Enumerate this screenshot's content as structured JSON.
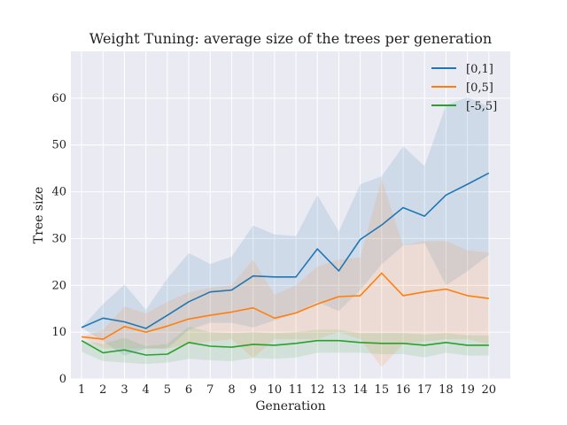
{
  "chart_data": {
    "type": "line",
    "title": "Weight Tuning: average size of the trees per generation",
    "xlabel": "Generation",
    "ylabel": "Tree size",
    "x": [
      1,
      2,
      3,
      4,
      5,
      6,
      7,
      8,
      9,
      10,
      11,
      12,
      13,
      14,
      15,
      16,
      17,
      18,
      19,
      20
    ],
    "xlim": [
      0.5,
      21
    ],
    "ylim": [
      0,
      70
    ],
    "yticks": [
      0,
      10,
      20,
      30,
      40,
      50,
      60
    ],
    "grid": true,
    "legend_position": "top-right",
    "series": [
      {
        "name": "[0,1]",
        "color": "#1f77b4",
        "values": [
          11,
          13,
          12.2,
          10.8,
          13.6,
          16.5,
          18.6,
          19,
          22,
          21.8,
          21.8,
          27.8,
          23.1,
          29.8,
          32.9,
          36.6,
          34.8,
          39.3,
          41.6,
          44
        ],
        "band_upper": [
          11,
          16,
          20.2,
          14.8,
          21.5,
          26.9,
          24.6,
          26.1,
          32.8,
          30.9,
          30.5,
          39.3,
          31.5,
          41.6,
          43.3,
          49.7,
          45.5,
          58.5,
          60.2,
          58.2
        ],
        "band_lower": [
          11,
          8,
          5,
          6.5,
          6.5,
          10.5,
          12,
          12,
          11,
          12.5,
          14,
          16.5,
          14.5,
          19,
          24.5,
          28.5,
          29,
          20,
          23,
          26.5
        ]
      },
      {
        "name": "[0,5]",
        "color": "#ff7f0e",
        "values": [
          9,
          8.5,
          11.2,
          10,
          11.3,
          12.8,
          13.6,
          14.3,
          15.2,
          13,
          14.1,
          16,
          17.6,
          17.8,
          22.6,
          17.8,
          18.6,
          19.2,
          17.8,
          17.2
        ],
        "band_upper": [
          9,
          10.5,
          15.5,
          14,
          16.5,
          18.5,
          19.5,
          20,
          25.5,
          18,
          20,
          24,
          25.5,
          26,
          42.8,
          28.5,
          29.5,
          29.5,
          27.5,
          27
        ],
        "band_lower": [
          9,
          6.5,
          6.5,
          6.5,
          6.5,
          7.5,
          8,
          8.5,
          4.5,
          8.5,
          8.5,
          8.5,
          10,
          8.5,
          2.5,
          7.5,
          8,
          8.5,
          8.5,
          7.5
        ]
      },
      {
        "name": "[-5,5]",
        "color": "#2ca02c",
        "values": [
          8.2,
          5.6,
          6.2,
          5.1,
          5.3,
          7.8,
          7,
          6.8,
          7.4,
          7.2,
          7.6,
          8.2,
          8.2,
          7.8,
          7.6,
          7.6,
          7.2,
          7.8,
          7.2,
          7.2
        ],
        "band_upper": [
          8.2,
          7.5,
          8.8,
          7,
          7.5,
          11.2,
          10,
          9.8,
          10,
          9.8,
          10,
          10.5,
          10.5,
          9.8,
          9.8,
          9.8,
          9.5,
          9.8,
          9.3,
          9.3
        ],
        "band_lower": [
          5.8,
          3.8,
          3.5,
          3.2,
          3.5,
          4.3,
          4,
          3.8,
          4.5,
          4.3,
          4.6,
          5.6,
          5.6,
          5.6,
          5.3,
          5.3,
          4.6,
          5.6,
          5,
          5
        ]
      }
    ]
  }
}
